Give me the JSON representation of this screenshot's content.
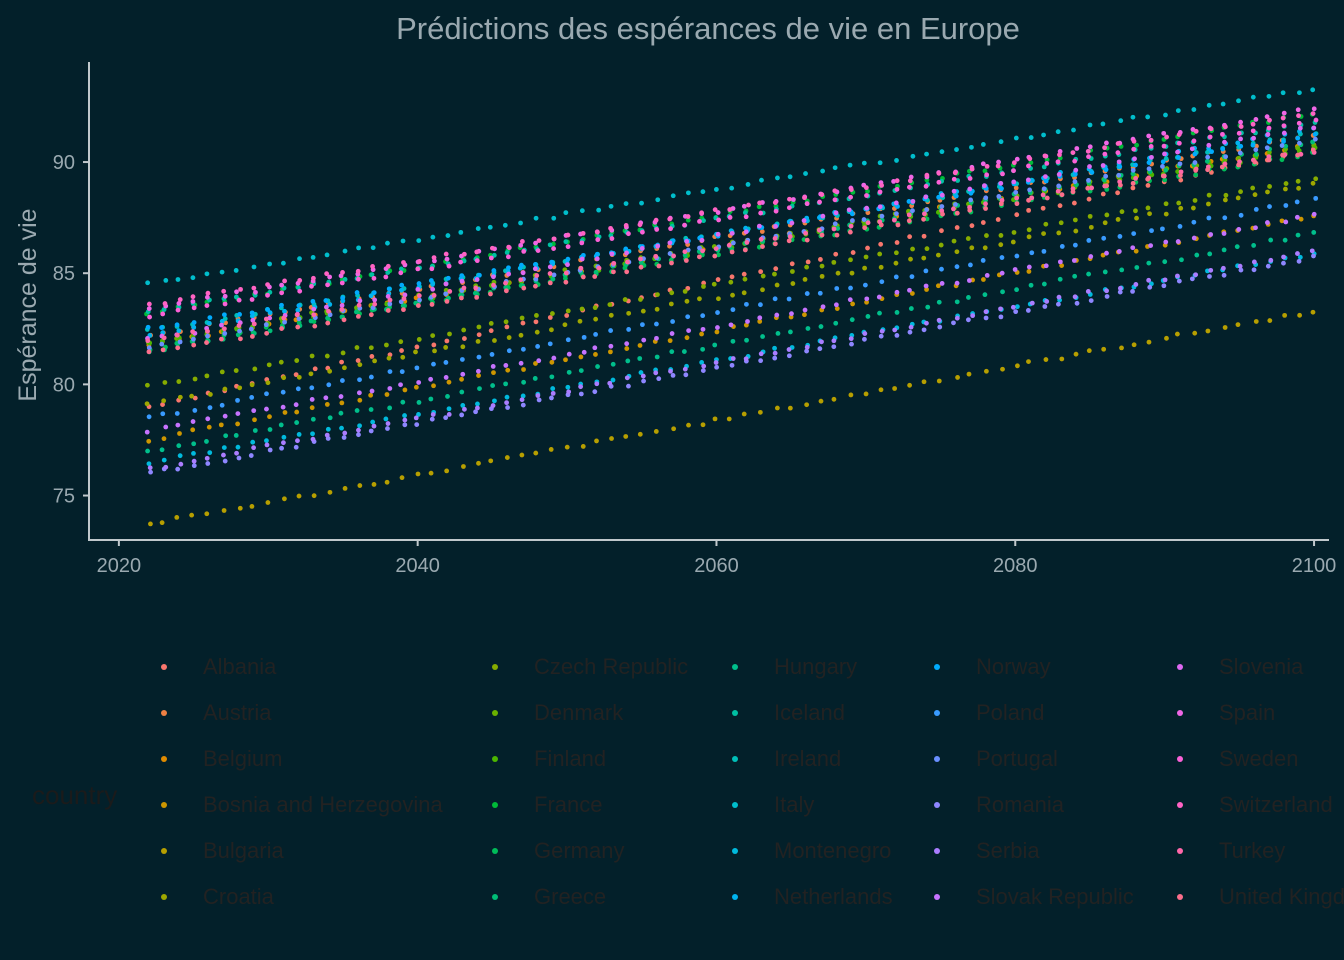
{
  "chart_data": {
    "type": "scatter",
    "title": "Prédictions des espérances de vie en Europe",
    "xlabel": "",
    "ylabel": "Espérance de vie",
    "xlim": [
      2018,
      2101
    ],
    "ylim": [
      73,
      94.5
    ],
    "x_ticks": [
      "2020",
      "2040",
      "2060",
      "2080",
      "2100"
    ],
    "y_ticks": [
      "75",
      "80",
      "85",
      "90"
    ],
    "x_range": [
      2022,
      2100
    ],
    "legend_title": "country",
    "legend_position": "bottom",
    "grid": false,
    "series": [
      {
        "name": "Albania",
        "color": "#F8766D",
        "start": 79.0,
        "end": 90.6
      },
      {
        "name": "Austria",
        "color": "#EE8043",
        "start": 82.2,
        "end": 91.2
      },
      {
        "name": "Belgium",
        "color": "#E08B00",
        "start": 81.8,
        "end": 90.8
      },
      {
        "name": "Bosnia and Herzegovina",
        "color": "#CD9600",
        "start": 77.5,
        "end": 87.6
      },
      {
        "name": "Bulgaria",
        "color": "#B79F00",
        "start": 73.7,
        "end": 83.3
      },
      {
        "name": "Croatia",
        "color": "#9EA700",
        "start": 79.1,
        "end": 89.0
      },
      {
        "name": "Czech Republic",
        "color": "#86AC00",
        "start": 79.9,
        "end": 89.3
      },
      {
        "name": "Denmark",
        "color": "#6BB100",
        "start": 81.9,
        "end": 90.8
      },
      {
        "name": "Finland",
        "color": "#4CB500",
        "start": 81.8,
        "end": 90.6
      },
      {
        "name": "France",
        "color": "#00BA38",
        "start": 83.2,
        "end": 92.2
      },
      {
        "name": "Germany",
        "color": "#00BC59",
        "start": 81.6,
        "end": 90.4
      },
      {
        "name": "Greece",
        "color": "#00BD76",
        "start": 81.5,
        "end": 90.9
      },
      {
        "name": "Hungary",
        "color": "#00BF8C",
        "start": 77.0,
        "end": 86.8
      },
      {
        "name": "Iceland",
        "color": "#00C0A3",
        "start": 83.3,
        "end": 91.8
      },
      {
        "name": "Ireland",
        "color": "#00BFB8",
        "start": 82.4,
        "end": 91.3
      },
      {
        "name": "Italy",
        "color": "#00BECC",
        "start": 84.5,
        "end": 93.3
      },
      {
        "name": "Montenegro",
        "color": "#00BADD",
        "start": 76.5,
        "end": 85.9
      },
      {
        "name": "Netherlands",
        "color": "#00B4EF",
        "start": 82.2,
        "end": 91.5
      },
      {
        "name": "Norway",
        "color": "#00ABFD",
        "start": 82.5,
        "end": 91.2
      },
      {
        "name": "Poland",
        "color": "#399BFF",
        "start": 78.5,
        "end": 88.3
      },
      {
        "name": "Portugal",
        "color": "#6A8FFF",
        "start": 81.7,
        "end": 91.0
      },
      {
        "name": "Romania",
        "color": "#8E86FF",
        "start": 76.0,
        "end": 85.7
      },
      {
        "name": "Serbia",
        "color": "#AB7DFF",
        "start": 76.2,
        "end": 86.0
      },
      {
        "name": "Slovak Republic",
        "color": "#C673FF",
        "start": 77.9,
        "end": 87.6
      },
      {
        "name": "Slovenia",
        "color": "#DE69F2",
        "start": 82.0,
        "end": 91.6
      },
      {
        "name": "Spain",
        "color": "#EF67E6",
        "start": 83.4,
        "end": 92.4
      },
      {
        "name": "Sweden",
        "color": "#FB61D7",
        "start": 83.1,
        "end": 91.9
      },
      {
        "name": "Switzerland",
        "color": "#FF63C4",
        "start": 83.6,
        "end": 92.2
      },
      {
        "name": "Turkey",
        "color": "#FF67A9",
        "start": 82.0,
        "end": 90.5
      },
      {
        "name": "United Kingdom",
        "color": "#FC6E8C",
        "start": 81.4,
        "end": 90.5
      }
    ]
  }
}
